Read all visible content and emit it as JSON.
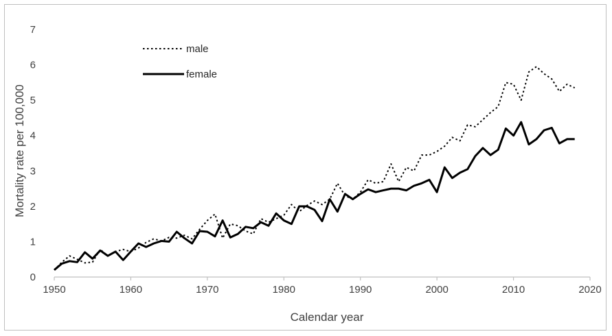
{
  "chart_data": {
    "type": "line",
    "xlabel": "Calendar year",
    "ylabel": "Mortality rate per 100,000",
    "xlim": [
      1950,
      2020
    ],
    "ylim": [
      0,
      7
    ],
    "xticks": [
      "1950",
      "1960",
      "1970",
      "1980",
      "1990",
      "2000",
      "2010",
      "2020"
    ],
    "yticks": [
      "0",
      "1",
      "2",
      "3",
      "4",
      "5",
      "6",
      "7"
    ],
    "legend_position": "top-left",
    "grid": false,
    "x": [
      1950,
      1951,
      1952,
      1953,
      1954,
      1955,
      1956,
      1957,
      1958,
      1959,
      1960,
      1961,
      1962,
      1963,
      1964,
      1965,
      1966,
      1967,
      1968,
      1969,
      1970,
      1971,
      1972,
      1973,
      1974,
      1975,
      1976,
      1977,
      1978,
      1979,
      1980,
      1981,
      1982,
      1983,
      1984,
      1985,
      1986,
      1987,
      1988,
      1989,
      1990,
      1991,
      1992,
      1993,
      1994,
      1995,
      1996,
      1997,
      1998,
      1999,
      2000,
      2001,
      2002,
      2003,
      2004,
      2005,
      2006,
      2007,
      2008,
      2009,
      2010,
      2011,
      2012,
      2013,
      2014,
      2015,
      2016,
      2017,
      2018
    ],
    "series": [
      {
        "name": "male",
        "style": "dotted",
        "color": "#000000",
        "values": [
          0.2,
          0.42,
          0.6,
          0.5,
          0.4,
          0.42,
          0.78,
          0.6,
          0.72,
          0.78,
          0.72,
          0.82,
          0.98,
          1.08,
          1.02,
          1.12,
          1.1,
          1.18,
          1.08,
          1.35,
          1.6,
          1.78,
          1.1,
          1.5,
          1.45,
          1.3,
          1.22,
          1.65,
          1.55,
          1.65,
          1.75,
          2.05,
          1.85,
          2.02,
          2.15,
          2.05,
          2.2,
          2.65,
          2.3,
          2.2,
          2.4,
          2.75,
          2.65,
          2.7,
          3.2,
          2.7,
          3.1,
          3.0,
          3.45,
          3.45,
          3.55,
          3.7,
          3.95,
          3.85,
          4.3,
          4.25,
          4.45,
          4.65,
          4.82,
          5.5,
          5.45,
          5.0,
          5.8,
          5.95,
          5.75,
          5.6,
          5.25,
          5.45,
          5.35
        ]
      },
      {
        "name": "female",
        "style": "solid",
        "color": "#000000",
        "values": [
          0.2,
          0.38,
          0.45,
          0.42,
          0.7,
          0.52,
          0.75,
          0.6,
          0.72,
          0.48,
          0.72,
          0.95,
          0.85,
          0.95,
          1.02,
          1.0,
          1.28,
          1.1,
          0.95,
          1.3,
          1.28,
          1.15,
          1.6,
          1.12,
          1.22,
          1.42,
          1.38,
          1.55,
          1.45,
          1.8,
          1.6,
          1.5,
          2.0,
          2.0,
          1.9,
          1.58,
          2.2,
          1.85,
          2.35,
          2.2,
          2.35,
          2.48,
          2.4,
          2.45,
          2.5,
          2.5,
          2.45,
          2.58,
          2.65,
          2.75,
          2.4,
          3.1,
          2.8,
          2.95,
          3.05,
          3.42,
          3.65,
          3.45,
          3.6,
          4.2,
          4.0,
          4.38,
          3.75,
          3.9,
          4.15,
          4.22,
          3.78,
          3.9,
          3.9
        ]
      }
    ]
  }
}
